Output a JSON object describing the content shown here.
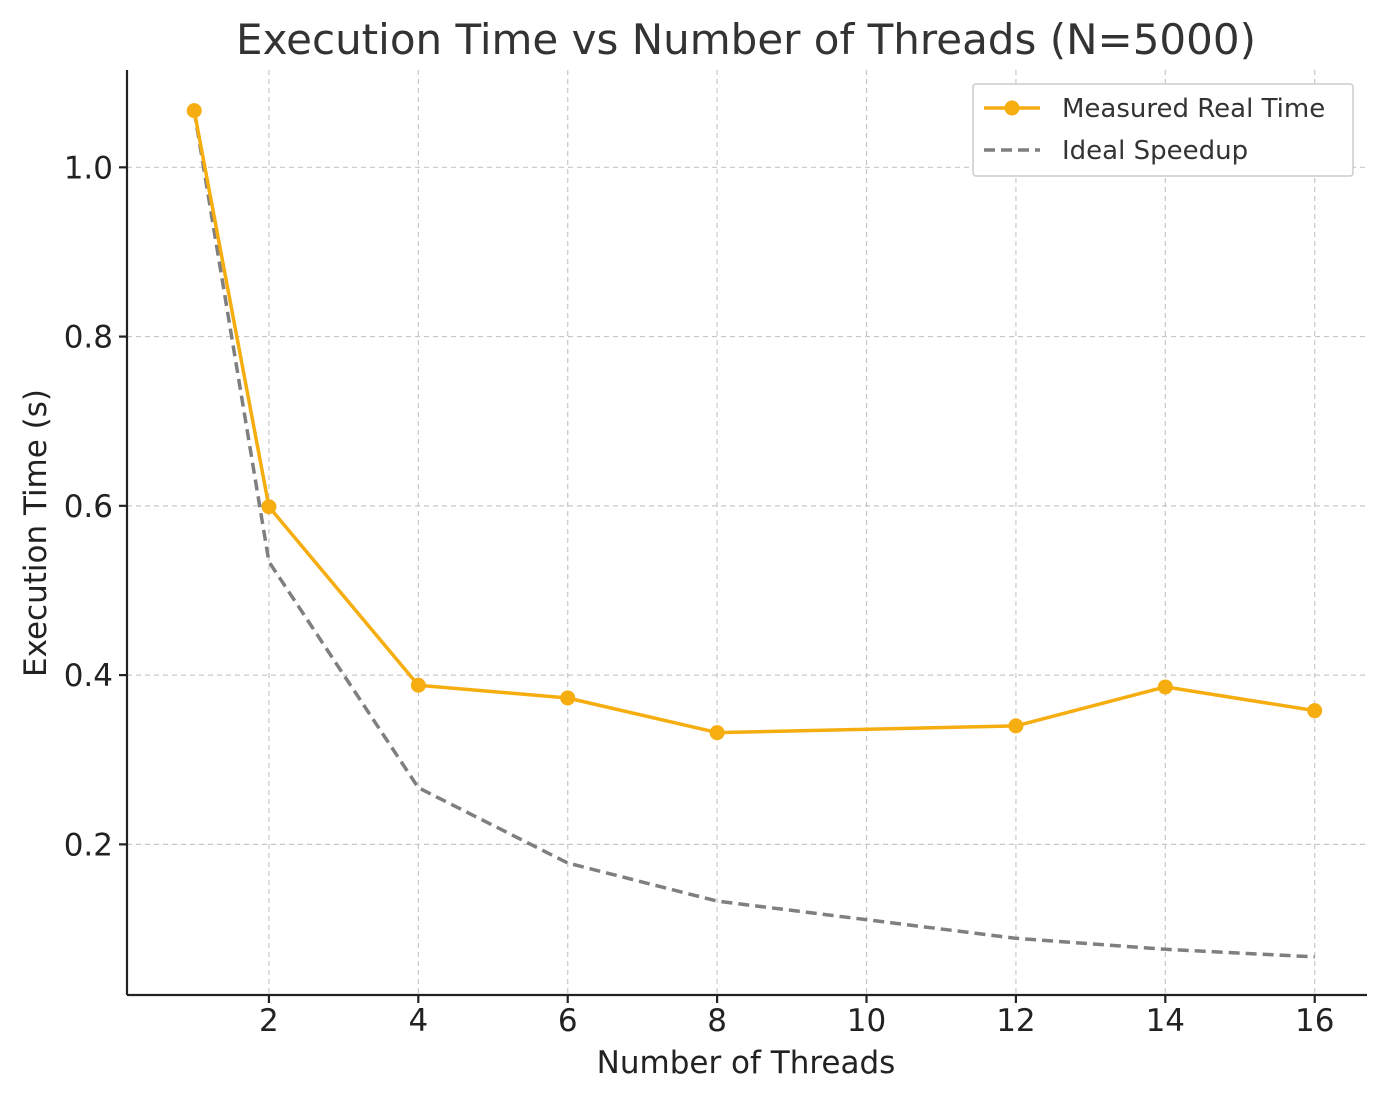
{
  "chart_data": {
    "type": "line",
    "title": "Execution Time vs Number of Threads (N=5000)",
    "xlabel": "Number of Threads",
    "ylabel": "Execution Time (s)",
    "xlim": [
      0.1,
      16.7
    ],
    "ylim": [
      0.022,
      1.115
    ],
    "xticks": [
      2,
      4,
      6,
      8,
      10,
      12,
      14,
      16
    ],
    "xtick_labels": [
      "2",
      "4",
      "6",
      "8",
      "10",
      "12",
      "14",
      "16"
    ],
    "yticks": [
      0.2,
      0.4,
      0.6,
      0.8,
      1.0
    ],
    "ytick_labels": [
      "0.2",
      "0.4",
      "0.6",
      "0.8",
      "1.0"
    ],
    "grid": true,
    "legend_position": "upper right",
    "x": [
      1,
      2,
      4,
      6,
      8,
      12,
      14,
      16
    ],
    "series": [
      {
        "name": "Measured Real Time",
        "values": [
          1.067,
          0.599,
          0.388,
          0.373,
          0.332,
          0.34,
          0.386,
          0.358
        ],
        "color": "#f5ad10",
        "style": "solid",
        "marker": "circle"
      },
      {
        "name": "Ideal Speedup",
        "values": [
          1.067,
          0.534,
          0.267,
          0.178,
          0.133,
          0.089,
          0.076,
          0.067
        ],
        "color": "#7f7f7f",
        "style": "dashed",
        "marker": "none"
      }
    ]
  }
}
